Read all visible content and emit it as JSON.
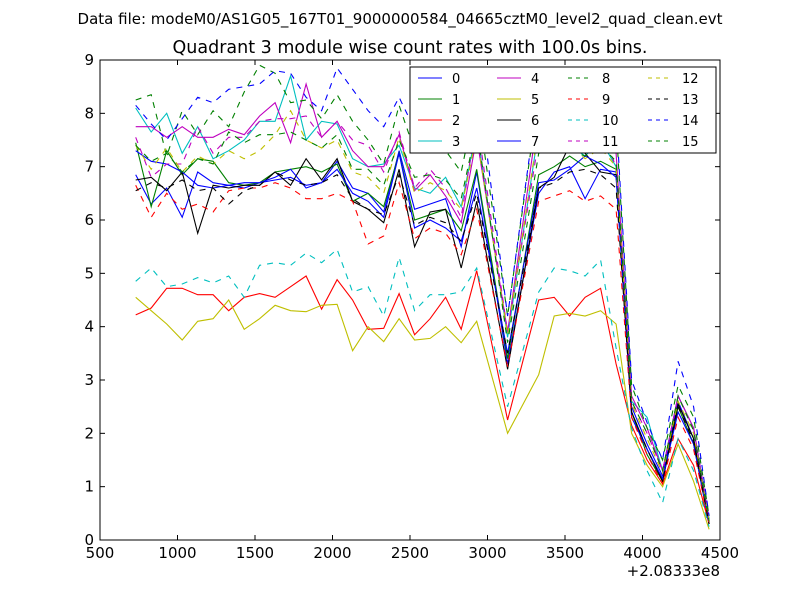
{
  "chart_data": {
    "type": "line",
    "suptitle": "Data file: modeM0/AS1G05_167T01_9000000584_04665cztM0_level2_quad_clean.evt",
    "title": "Quadrant 3 module wise count rates with 100.0s bins.",
    "xlabel": "",
    "ylabel": "",
    "x_offset_label": "+2.08333e8",
    "xlim": [
      500,
      4500
    ],
    "ylim": [
      0,
      9
    ],
    "xticks": [
      500,
      1000,
      1500,
      2000,
      2500,
      3000,
      3500,
      4000,
      4500
    ],
    "yticks": [
      0,
      1,
      2,
      3,
      4,
      5,
      6,
      7,
      8,
      9
    ],
    "legend_position": "top-right",
    "x": [
      730,
      830,
      930,
      1030,
      1130,
      1230,
      1330,
      1430,
      1530,
      1630,
      1730,
      1830,
      1930,
      2030,
      2130,
      2230,
      2330,
      2430,
      2530,
      2630,
      2730,
      2830,
      2930,
      3130,
      3330,
      3430,
      3530,
      3630,
      3730,
      3830,
      3930,
      4030,
      4130,
      4230,
      4330,
      4430
    ],
    "series": [
      {
        "name": "0",
        "color": "#0000ff",
        "dash": "solid",
        "values": [
          6.85,
          6.3,
          6.6,
          6.05,
          6.9,
          6.7,
          6.65,
          6.6,
          6.7,
          6.75,
          6.8,
          6.65,
          6.7,
          7.1,
          6.6,
          6.5,
          6.15,
          7.3,
          6.2,
          6.3,
          6.4,
          5.5,
          6.9,
          3.3,
          6.5,
          6.9,
          7.0,
          6.4,
          6.95,
          6.9,
          2.5,
          1.8,
          1.2,
          2.6,
          1.9,
          0.35
        ]
      },
      {
        "name": "1",
        "color": "#008000",
        "dash": "solid",
        "values": [
          7.45,
          6.25,
          7.3,
          6.85,
          7.15,
          7.1,
          6.7,
          6.65,
          6.7,
          6.9,
          6.95,
          7.0,
          6.9,
          7.05,
          6.35,
          6.5,
          6.25,
          7.25,
          6.0,
          6.1,
          6.2,
          5.8,
          6.95,
          3.4,
          6.85,
          7.0,
          7.2,
          7.0,
          7.1,
          6.95,
          2.4,
          1.6,
          1.1,
          2.5,
          1.8,
          0.3
        ]
      },
      {
        "name": "2",
        "color": "#ff0000",
        "dash": "solid",
        "values": [
          4.22,
          4.35,
          4.72,
          4.72,
          4.6,
          4.6,
          4.3,
          4.55,
          4.62,
          4.55,
          4.75,
          4.95,
          4.33,
          4.88,
          4.5,
          3.95,
          3.97,
          4.62,
          3.85,
          4.15,
          4.55,
          3.95,
          5.05,
          2.25,
          4.5,
          4.55,
          4.2,
          4.55,
          4.72,
          3.3,
          2.15,
          1.5,
          1.05,
          1.9,
          1.4,
          0.3
        ]
      },
      {
        "name": "3",
        "color": "#00bfbf",
        "dash": "solid",
        "values": [
          8.1,
          7.65,
          8.0,
          7.25,
          7.75,
          7.15,
          7.3,
          7.5,
          7.85,
          7.85,
          8.7,
          7.5,
          7.85,
          7.8,
          7.15,
          7.0,
          7.05,
          7.4,
          6.6,
          6.5,
          6.8,
          6.25,
          7.7,
          3.8,
          7.7,
          7.75,
          7.4,
          7.2,
          7.5,
          7.0,
          2.6,
          2.3,
          1.3,
          2.7,
          2.1,
          0.4
        ]
      },
      {
        "name": "4",
        "color": "#bf00bf",
        "dash": "solid",
        "values": [
          7.75,
          7.75,
          7.55,
          7.75,
          7.55,
          7.55,
          7.7,
          7.6,
          7.95,
          8.2,
          7.45,
          8.55,
          7.55,
          7.85,
          7.3,
          7.0,
          7.0,
          7.6,
          6.55,
          6.85,
          6.45,
          5.95,
          7.55,
          3.9,
          8.05,
          7.75,
          7.65,
          7.5,
          7.85,
          7.25,
          2.7,
          2.1,
          1.3,
          2.7,
          2.1,
          0.35
        ]
      },
      {
        "name": "5",
        "color": "#bfbf00",
        "dash": "solid",
        "values": [
          4.55,
          4.3,
          4.05,
          3.75,
          4.1,
          4.15,
          4.5,
          3.95,
          4.15,
          4.4,
          4.3,
          4.28,
          4.4,
          4.42,
          3.55,
          4.0,
          3.72,
          4.15,
          3.75,
          3.78,
          4.0,
          3.7,
          4.1,
          2.0,
          3.1,
          4.2,
          4.25,
          4.2,
          4.3,
          4.05,
          2.0,
          1.4,
          1.0,
          1.8,
          1.1,
          0.2
        ]
      },
      {
        "name": "6",
        "color": "#000000",
        "dash": "solid",
        "values": [
          6.75,
          6.8,
          6.55,
          6.9,
          5.75,
          6.65,
          6.6,
          6.65,
          6.65,
          6.9,
          6.65,
          7.15,
          6.75,
          7.15,
          6.35,
          6.2,
          5.95,
          6.95,
          5.5,
          6.15,
          6.2,
          5.1,
          6.35,
          3.2,
          6.6,
          6.8,
          7.4,
          7.25,
          6.9,
          6.85,
          2.4,
          1.7,
          1.1,
          2.55,
          1.9,
          0.3
        ]
      },
      {
        "name": "7",
        "color": "#0000ff",
        "dash": "solid",
        "values": [
          7.3,
          7.1,
          7.05,
          6.9,
          6.65,
          6.6,
          6.65,
          6.7,
          6.7,
          6.8,
          6.95,
          6.6,
          6.7,
          6.95,
          6.5,
          6.35,
          6.05,
          7.25,
          5.85,
          6.0,
          5.85,
          5.6,
          6.6,
          3.5,
          6.7,
          6.75,
          6.95,
          7.2,
          7.05,
          6.8,
          2.3,
          1.7,
          1.15,
          2.4,
          1.8,
          0.3
        ]
      },
      {
        "name": "8",
        "color": "#008000",
        "dash": "dashed",
        "values": [
          8.25,
          8.35,
          7.2,
          8.05,
          7.6,
          8.05,
          7.75,
          8.4,
          8.9,
          8.75,
          8.2,
          8.25,
          7.9,
          8.35,
          7.85,
          7.5,
          7.05,
          8.15,
          7.3,
          7.4,
          7.3,
          6.9,
          8.3,
          4.2,
          8.35,
          8.3,
          8.1,
          8.3,
          8.65,
          7.8,
          2.9,
          2.1,
          1.5,
          2.9,
          2.3,
          0.45
        ]
      },
      {
        "name": "9",
        "color": "#ff0000",
        "dash": "dashed",
        "values": [
          6.65,
          6.05,
          6.5,
          6.2,
          6.3,
          6.15,
          6.55,
          6.6,
          6.6,
          6.7,
          6.6,
          6.4,
          6.4,
          6.5,
          6.35,
          5.55,
          5.7,
          6.7,
          5.65,
          5.85,
          5.75,
          5.35,
          6.2,
          3.25,
          6.35,
          6.45,
          6.55,
          6.35,
          6.45,
          6.2,
          2.3,
          1.6,
          1.05,
          2.3,
          1.7,
          0.3
        ]
      },
      {
        "name": "10",
        "color": "#00bfbf",
        "dash": "dashed",
        "values": [
          4.85,
          5.1,
          4.75,
          4.8,
          4.92,
          4.82,
          4.95,
          4.55,
          5.15,
          5.2,
          5.15,
          5.38,
          5.2,
          5.45,
          4.65,
          4.75,
          4.2,
          5.3,
          4.3,
          4.6,
          4.6,
          4.65,
          5.1,
          2.5,
          4.65,
          5.1,
          5.05,
          4.95,
          5.25,
          3.6,
          2.1,
          1.3,
          0.7,
          1.9,
          1.3,
          0.25
        ]
      },
      {
        "name": "11",
        "color": "#bf00bf",
        "dash": "dashed",
        "values": [
          7.55,
          6.8,
          7.05,
          7.05,
          7.75,
          7.25,
          7.55,
          7.55,
          7.85,
          7.9,
          7.9,
          7.95,
          7.55,
          7.85,
          7.5,
          7.4,
          6.9,
          7.65,
          6.6,
          6.95,
          6.6,
          6.05,
          7.9,
          3.9,
          7.5,
          7.65,
          7.55,
          7.35,
          7.7,
          7.0,
          2.6,
          2.0,
          1.3,
          2.7,
          2.1,
          0.4
        ]
      },
      {
        "name": "12",
        "color": "#bfbf00",
        "dash": "dashed",
        "values": [
          7.4,
          6.95,
          7.35,
          6.9,
          7.2,
          7.05,
          7.3,
          7.15,
          7.3,
          7.6,
          8.05,
          7.5,
          7.35,
          7.5,
          6.9,
          6.8,
          6.5,
          7.55,
          6.5,
          6.7,
          6.55,
          6.2,
          7.6,
          3.85,
          7.75,
          7.7,
          7.4,
          7.15,
          7.35,
          7.0,
          2.55,
          1.9,
          1.25,
          2.6,
          2.0,
          0.35
        ]
      },
      {
        "name": "13",
        "color": "#000000",
        "dash": "dashed",
        "values": [
          6.55,
          6.7,
          6.6,
          6.75,
          6.55,
          6.6,
          6.3,
          6.55,
          6.65,
          6.9,
          6.75,
          6.65,
          6.7,
          6.85,
          6.4,
          6.2,
          6.1,
          6.85,
          5.9,
          6.05,
          5.95,
          5.6,
          6.5,
          3.5,
          6.6,
          6.7,
          6.9,
          6.95,
          6.85,
          6.6,
          2.4,
          1.7,
          1.1,
          2.5,
          1.85,
          0.3
        ]
      },
      {
        "name": "14",
        "color": "#0000ff",
        "dash": "dashed",
        "values": [
          8.15,
          7.8,
          7.5,
          7.9,
          8.3,
          8.2,
          8.45,
          8.5,
          8.55,
          8.8,
          8.75,
          8.3,
          8.05,
          8.85,
          8.45,
          8.05,
          7.75,
          8.3,
          7.7,
          7.8,
          7.7,
          7.5,
          8.75,
          4.2,
          8.45,
          8.35,
          8.25,
          8.55,
          8.8,
          7.95,
          3.0,
          2.2,
          1.5,
          3.35,
          2.5,
          0.45
        ]
      },
      {
        "name": "15",
        "color": "#008000",
        "dash": "dashed",
        "values": [
          7.4,
          7.1,
          7.25,
          6.9,
          7.15,
          7.05,
          7.65,
          7.45,
          7.6,
          7.6,
          7.65,
          7.5,
          7.35,
          7.6,
          6.95,
          6.95,
          6.65,
          7.5,
          6.8,
          6.85,
          6.75,
          6.4,
          7.75,
          3.7,
          7.25,
          7.35,
          7.3,
          7.2,
          7.4,
          7.1,
          2.6,
          2.0,
          1.3,
          2.7,
          2.05,
          0.35
        ]
      }
    ]
  }
}
